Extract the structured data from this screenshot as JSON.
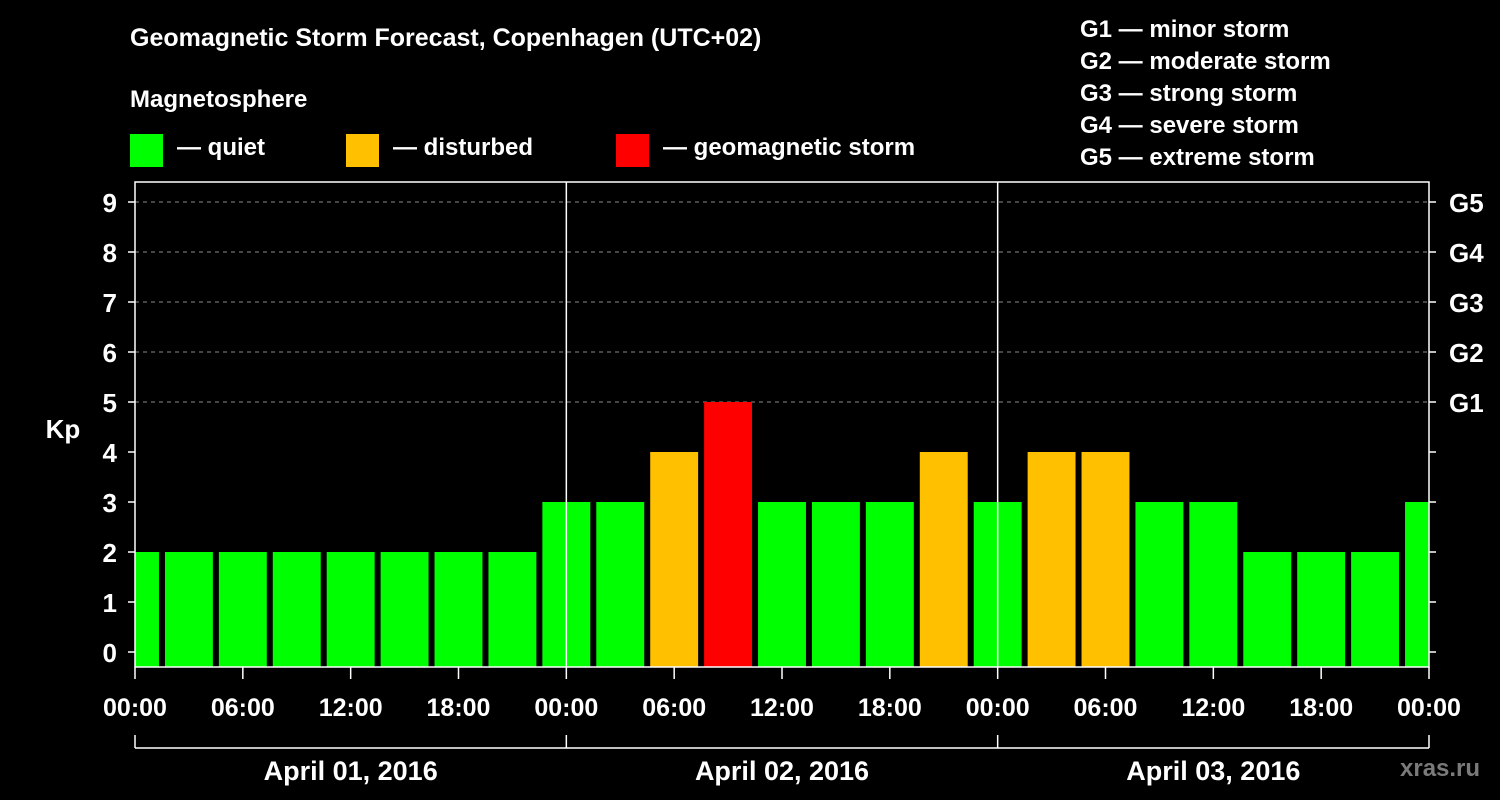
{
  "title": "Geomagnetic Storm Forecast, Copenhagen (UTC+02)",
  "magnetosphere": {
    "heading": "Magnetosphere",
    "legend": [
      {
        "label": "— quiet",
        "color": "#00ff00"
      },
      {
        "label": "— disturbed",
        "color": "#ffc000"
      },
      {
        "label": "— geomagnetic storm",
        "color": "#ff0000"
      }
    ]
  },
  "storm_scale": [
    "G1 — minor storm",
    "G2 — moderate storm",
    "G3 — strong storm",
    "G4 — severe storm",
    "G5 — extreme storm"
  ],
  "watermark": "xras.ru",
  "chart_data": {
    "type": "bar",
    "ylabel": "Kp",
    "ylim": [
      -0.3,
      9.4
    ],
    "yticks": [
      0,
      1,
      2,
      3,
      4,
      5,
      6,
      7,
      8,
      9
    ],
    "right_axis_labels": [
      {
        "kp": 5,
        "label": "G1"
      },
      {
        "kp": 6,
        "label": "G2"
      },
      {
        "kp": 7,
        "label": "G3"
      },
      {
        "kp": 8,
        "label": "G4"
      },
      {
        "kp": 9,
        "label": "G5"
      }
    ],
    "x_range_hours": [
      0,
      72
    ],
    "time_ticks": [
      "00:00",
      "06:00",
      "12:00",
      "18:00",
      "00:00",
      "06:00",
      "12:00",
      "18:00",
      "00:00",
      "06:00",
      "12:00",
      "18:00",
      "00:00"
    ],
    "days": [
      "April 01, 2016",
      "April 02, 2016",
      "April 03, 2016"
    ],
    "bar_interval_hours": 3,
    "values": [
      2,
      2,
      2,
      2,
      2,
      2,
      2,
      2,
      3,
      3,
      4,
      5,
      3,
      3,
      3,
      4,
      3,
      4,
      4,
      3,
      3,
      2,
      2,
      2,
      3
    ],
    "colors": {
      "quiet": "#00ff00",
      "disturbed": "#ffc000",
      "storm": "#ff0000"
    }
  }
}
